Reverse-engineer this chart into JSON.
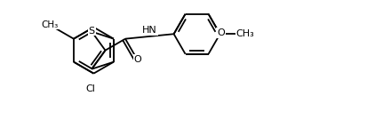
{
  "bg_color": "#ffffff",
  "line_color": "#000000",
  "lw": 1.3,
  "fs": 8.0,
  "xlim": [
    0,
    10.5
  ],
  "ylim": [
    0,
    4.2
  ],
  "figsize": [
    4.13,
    1.53
  ],
  "dpi": 100
}
